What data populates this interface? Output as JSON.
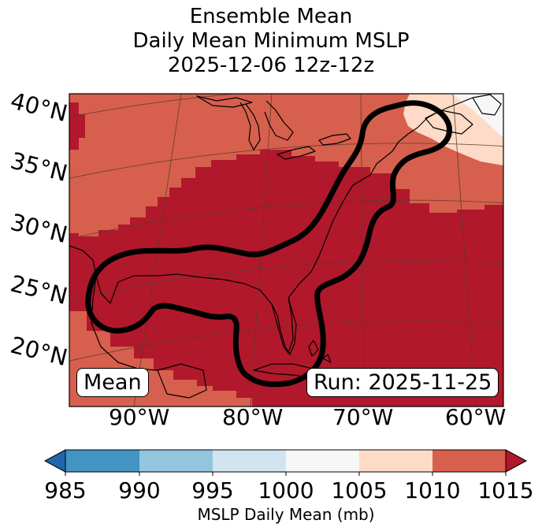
{
  "title": {
    "line1": "Ensemble Mean",
    "line2": "Daily Mean Minimum MSLP",
    "line3": "2025-12-06 12z-12z"
  },
  "map": {
    "lat_labels": [
      "40°N",
      "35°N",
      "30°N",
      "25°N",
      "20°N"
    ],
    "lon_labels": [
      "90°W",
      "80°W",
      "70°W",
      "60°W"
    ],
    "left_box": "Mean",
    "right_box": "Run: 2025-11-25",
    "colors": {
      "land_outline": "#000000",
      "contour": "#000000",
      "graticule": "#5a3a2a"
    }
  },
  "colorbar": {
    "label": "MSLP Daily Mean (mb)",
    "ticks": [
      "985",
      "990",
      "995",
      "1000",
      "1005",
      "1010",
      "1015"
    ],
    "bins": [
      {
        "range": "<985",
        "color": "#2166ac"
      },
      {
        "range": "985-990",
        "color": "#4393c3"
      },
      {
        "range": "990-995",
        "color": "#92c5de"
      },
      {
        "range": "995-1000",
        "color": "#d1e5f0"
      },
      {
        "range": "1000-1005",
        "color": "#f7f7f7"
      },
      {
        "range": "1005-1010",
        "color": "#fddbc7"
      },
      {
        "range": "1010-1015",
        "color": "#d6604d"
      },
      {
        "range": ">1015",
        "color": "#b2182b"
      }
    ]
  }
}
